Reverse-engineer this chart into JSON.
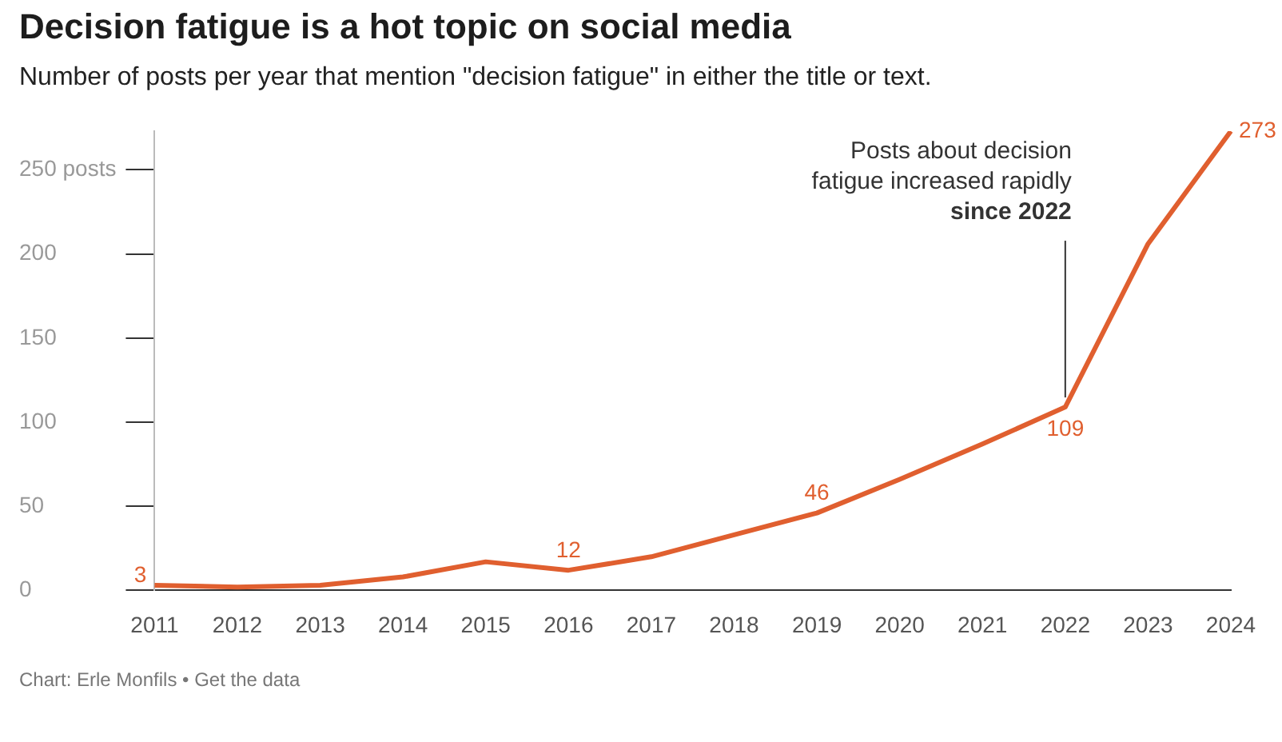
{
  "chart_data": {
    "type": "line",
    "title": "Decision fatigue is a hot topic on social media",
    "subtitle": "Number of posts per year that mention \"decision fatigue\" in either the title or text.",
    "categories": [
      "2011",
      "2012",
      "2013",
      "2014",
      "2015",
      "2016",
      "2017",
      "2018",
      "2019",
      "2020",
      "2021",
      "2022",
      "2023",
      "2024"
    ],
    "series": [
      {
        "color": "#e05f2f",
        "values": [
          3,
          2,
          3,
          8,
          17,
          12,
          20,
          33,
          46,
          66,
          87,
          109,
          206,
          273
        ],
        "value_labels": [
          "3",
          null,
          null,
          null,
          null,
          "12",
          null,
          null,
          "46",
          null,
          null,
          "109",
          null,
          "273"
        ]
      }
    ],
    "ylim": [
      0,
      273
    ],
    "yticks": [
      0,
      50,
      100,
      150,
      200,
      {
        "value": 250,
        "label": "250 posts"
      }
    ],
    "grid": false,
    "legend": false,
    "marker": "none",
    "line_style": "solid",
    "annotations": [
      {
        "text": "Posts about decision\nfatigue increased rapidly\nsince 2022",
        "x": "2022",
        "y": 109
      },
      "Chart: Erle Monfils • Get the data"
    ]
  }
}
